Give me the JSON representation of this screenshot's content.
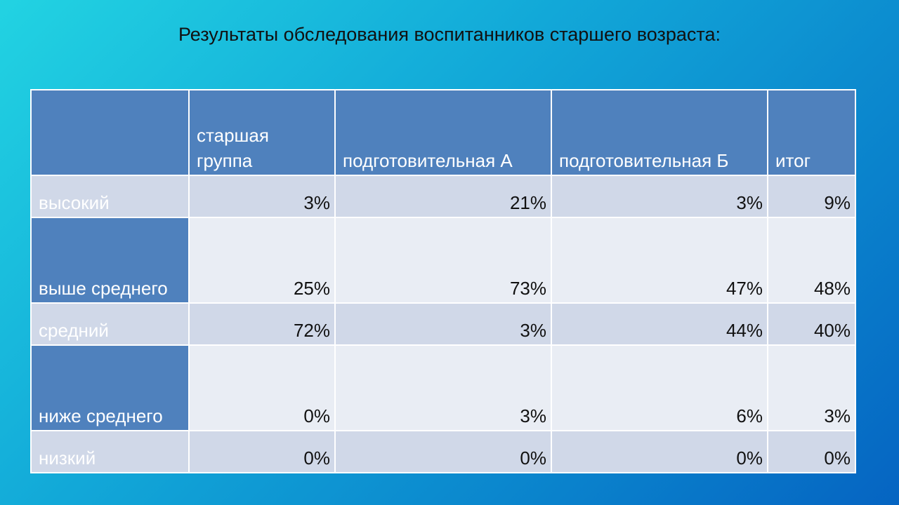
{
  "slide": {
    "title": "Результаты обследования воспитанников старшего возраста:"
  },
  "table": {
    "headers": [
      "",
      "старшая группа",
      "подготовительная А",
      "подготовительная Б",
      "итог"
    ],
    "rows": [
      {
        "label": "высокий",
        "values": [
          "3%",
          "21%",
          "3%",
          "9%"
        ]
      },
      {
        "label": "выше среднего",
        "values": [
          "25%",
          "73%",
          "47%",
          "48%"
        ]
      },
      {
        "label": "средний",
        "values": [
          "72%",
          "3%",
          "44%",
          "40%"
        ]
      },
      {
        "label": "ниже среднего",
        "values": [
          "0%",
          "3%",
          "6%",
          "3%"
        ]
      },
      {
        "label": "низкий",
        "values": [
          "0%",
          "0%",
          "0%",
          "0%"
        ]
      }
    ]
  },
  "colors": {
    "header": "#4f81bd",
    "band_light": "#d0d8e8",
    "band_dark_value": "#e9edf4",
    "background_start": "#22d3e2",
    "background_end": "#0564c2"
  }
}
